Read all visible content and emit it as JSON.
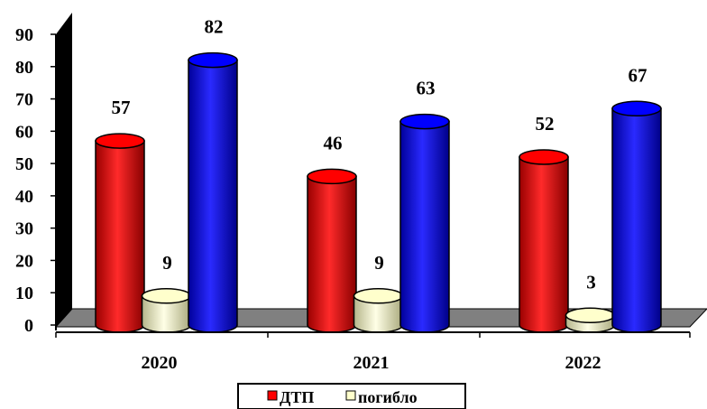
{
  "chart_data": {
    "type": "bar",
    "categories": [
      "2020",
      "2021",
      "2022"
    ],
    "series": [
      {
        "name": "ДТП",
        "values": [
          57,
          46,
          52
        ],
        "color": "#ff0000",
        "legend": true
      },
      {
        "name": "погибло",
        "values": [
          9,
          9,
          3
        ],
        "color": "#ffffcc",
        "legend": true
      },
      {
        "name": "",
        "values": [
          82,
          63,
          67
        ],
        "color": "#0000ff",
        "legend": false
      }
    ],
    "y_ticks": [
      "0",
      "10",
      "20",
      "30",
      "40",
      "50",
      "60",
      "70",
      "80",
      "90"
    ],
    "ylim": [
      0,
      90
    ],
    "bar_shape": "cylinder",
    "floor_color": "#808080",
    "wall_color": "#000000",
    "legend_placement": "bottom-center"
  }
}
